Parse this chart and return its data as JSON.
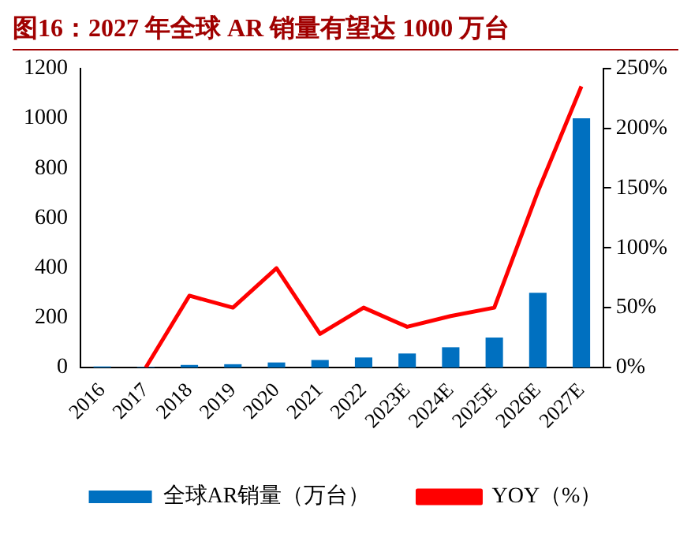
{
  "chart_data": {
    "type": "bar",
    "title": "图16：2027 年全球 AR 销量有望达 1000 万台",
    "categories": [
      "2016",
      "2017",
      "2018",
      "2019",
      "2020",
      "2021",
      "2022",
      "2023E",
      "2024E",
      "2025E",
      "2026E",
      "2027E"
    ],
    "series": [
      {
        "name": "全球AR销量（万台）",
        "color": "#0070c0",
        "values": [
          4,
          2,
          10,
          13,
          20,
          30,
          40,
          56,
          81,
          120,
          300,
          1000
        ]
      },
      {
        "name": "YOY（%）",
        "type": "line",
        "axis": "y2",
        "color": "#ff0000",
        "values": [
          null,
          0,
          60,
          50,
          83,
          28,
          50,
          34,
          43,
          50,
          147,
          235
        ]
      }
    ],
    "ylim": [
      0,
      1200
    ],
    "yticks": [
      0,
      200,
      400,
      600,
      800,
      1000,
      1200
    ],
    "y2lim": [
      0,
      250
    ],
    "y2ticks": [
      {
        "value": 0,
        "label": "0%"
      },
      {
        "value": 50,
        "label": "50%"
      },
      {
        "value": 100,
        "label": "100%"
      },
      {
        "value": 150,
        "label": "150%"
      },
      {
        "value": 200,
        "label": "200%"
      },
      {
        "value": 250,
        "label": "250%"
      }
    ],
    "grid": false,
    "legend": "bottom",
    "marker": "none",
    "line_style": "solid"
  }
}
